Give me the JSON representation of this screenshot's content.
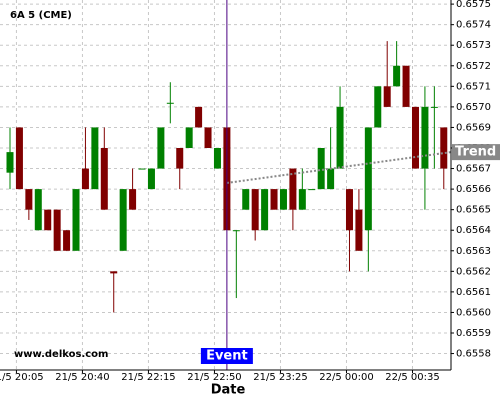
{
  "chart_data": {
    "type": "candlestick",
    "title": "6A 5 (CME)",
    "xlabel": "Date",
    "watermark": "www.delkos.com",
    "categories": [
      null,
      "21/5 20:05",
      null,
      null,
      null,
      null,
      null,
      null,
      "21/5 20:40",
      null,
      null,
      null,
      null,
      null,
      null,
      "21/5 22:15",
      null,
      null,
      null,
      null,
      null,
      null,
      "21/5 22:50",
      null,
      null,
      null,
      null,
      null,
      null,
      "21/5 23:25",
      null,
      null,
      null,
      null,
      null,
      null,
      "22/5 00:00",
      null,
      null,
      null,
      null,
      null,
      null,
      "22/5 00:35",
      null,
      null,
      null
    ],
    "open": [
      0.65668,
      0.6569,
      0.6566,
      0.6564,
      0.6565,
      0.6565,
      0.6564,
      0.6563,
      0.6567,
      0.6566,
      0.6568,
      0.6562,
      0.6563,
      0.6566,
      0.6567,
      0.6566,
      0.6567,
      0.65702,
      0.6568,
      0.6568,
      0.657,
      0.6569,
      0.6567,
      0.6569,
      0.6564,
      0.6565,
      0.6566,
      0.6564,
      0.6566,
      0.6565,
      0.6567,
      0.6565,
      0.6566,
      0.6566,
      0.6566,
      0.6567,
      0.6566,
      0.6565,
      0.6564,
      0.6569,
      0.6571,
      0.6571,
      0.6572,
      0.657,
      0.6567,
      0.657,
      0.6569
    ],
    "high": [
      0.6569,
      0.6569,
      0.6566,
      0.6566,
      0.6565,
      0.6565,
      0.6564,
      0.6566,
      0.6569,
      0.6569,
      0.6569,
      0.6562,
      0.6566,
      0.6567,
      0.6567,
      0.6567,
      0.6569,
      0.65712,
      0.6568,
      0.6569,
      0.657,
      0.6569,
      0.6568,
      0.6569,
      0.6564,
      0.6566,
      0.6566,
      0.6566,
      0.6566,
      0.6566,
      0.6567,
      0.6567,
      0.6566,
      0.6568,
      0.6569,
      0.6571,
      0.6566,
      0.6566,
      0.6569,
      0.6571,
      0.65732,
      0.65732,
      0.6572,
      0.657,
      0.6571,
      0.6571,
      0.6569
    ],
    "low": [
      0.6566,
      0.6566,
      0.65645,
      0.6564,
      0.6564,
      0.6563,
      0.6563,
      0.6563,
      0.6566,
      0.6566,
      0.6565,
      0.656,
      0.6563,
      0.6565,
      0.6567,
      0.6566,
      0.6567,
      0.65692,
      0.6566,
      0.6568,
      0.6569,
      0.6568,
      0.6567,
      0.6564,
      0.65607,
      0.6565,
      0.65635,
      0.6564,
      0.6565,
      0.6565,
      0.6564,
      0.6565,
      0.6566,
      0.6566,
      0.6566,
      0.6567,
      0.6562,
      0.6563,
      0.6562,
      0.6569,
      0.657,
      0.6571,
      0.657,
      0.6567,
      0.6565,
      0.6567,
      0.6566
    ],
    "close": [
      0.65678,
      0.6566,
      0.6565,
      0.6566,
      0.6564,
      0.6563,
      0.6563,
      0.6566,
      0.6566,
      0.6569,
      0.6565,
      0.65619,
      0.6566,
      0.6565,
      0.6567,
      0.6567,
      0.6569,
      0.65702,
      0.6567,
      0.6569,
      0.6569,
      0.6568,
      0.6568,
      0.6564,
      0.6564,
      0.6566,
      0.6564,
      0.6566,
      0.6565,
      0.6566,
      0.6565,
      0.6566,
      0.6566,
      0.6568,
      0.6567,
      0.657,
      0.6564,
      0.6563,
      0.6569,
      0.6571,
      0.657,
      0.6572,
      0.657,
      0.6567,
      0.657,
      0.657,
      0.6567
    ],
    "up_color": "#008000",
    "down_color": "#800000",
    "event": {
      "label": "Event",
      "index": 23
    },
    "trend": {
      "label": "Trend",
      "values": [
        0.65663,
        0.65678
      ]
    },
    "ylim": [
      0.65572,
      0.65752
    ],
    "yticks": [
      0.6558,
      0.6559,
      {
        "value": 0.656,
        "label": "0.6560"
      },
      0.6561,
      0.6562,
      0.6563,
      0.6564,
      0.6565,
      0.6566,
      0.6567,
      0.6568,
      0.6569,
      {
        "value": 0.657,
        "label": "0.6570"
      },
      0.6571,
      0.6572,
      0.6573,
      0.6574,
      0.6575
    ],
    "grid": true
  }
}
